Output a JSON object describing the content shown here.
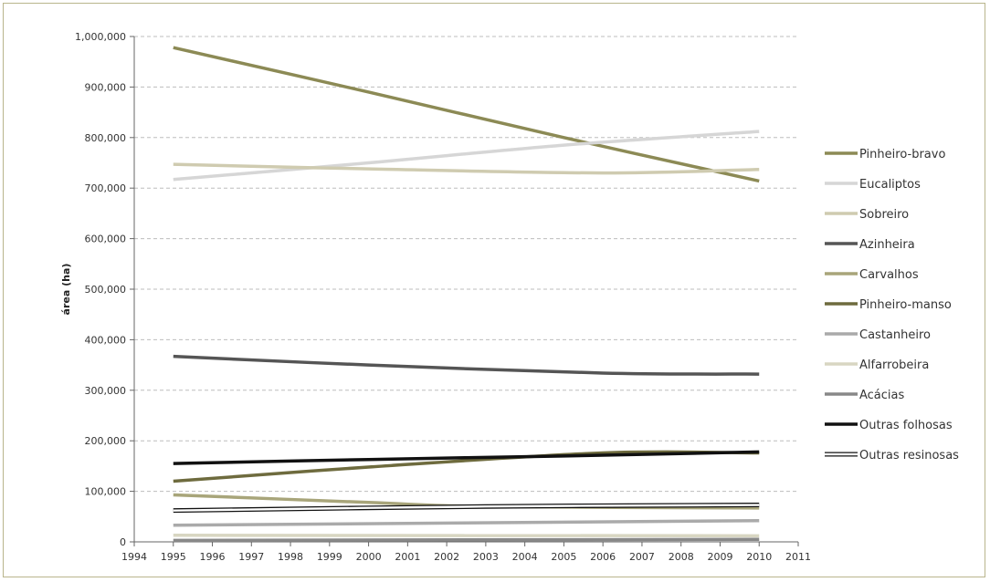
{
  "chart_data": {
    "type": "line",
    "title": "",
    "xlabel": "",
    "ylabel": "área (ha)",
    "x": [
      1995,
      2010
    ],
    "xlim": [
      1994,
      2011
    ],
    "xticks": [
      "1994",
      "1995",
      "1996",
      "1997",
      "1998",
      "1999",
      "2000",
      "2001",
      "2002",
      "2003",
      "2004",
      "2005",
      "2006",
      "2007",
      "2008",
      "2009",
      "2010",
      "2011"
    ],
    "ylim": [
      0,
      1000000
    ],
    "yticks": [
      "0",
      "100,000",
      "200,000",
      "300,000",
      "400,000",
      "500,000",
      "600,000",
      "700,000",
      "800,000",
      "900,000",
      "1,000,000"
    ],
    "grid": "horizontal dashed",
    "legend_position": "right",
    "series": [
      {
        "name": "Pinheiro-bravo",
        "color": "#8c8a55",
        "points": [
          [
            1995,
            978000
          ],
          [
            2000,
            890000
          ],
          [
            2005,
            800000
          ],
          [
            2010,
            714000
          ]
        ]
      },
      {
        "name": "Eucaliptos",
        "color": "#d6d6d6",
        "points": [
          [
            1995,
            717000
          ],
          [
            2000,
            750000
          ],
          [
            2005,
            785000
          ],
          [
            2010,
            812000
          ]
        ]
      },
      {
        "name": "Sobreiro",
        "color": "#cfcbb0",
        "points": [
          [
            1995,
            747000
          ],
          [
            2000,
            738000
          ],
          [
            2006,
            730000
          ],
          [
            2010,
            737000
          ]
        ]
      },
      {
        "name": "Azinheira",
        "color": "#555555",
        "points": [
          [
            1995,
            367000
          ],
          [
            2000,
            350000
          ],
          [
            2006,
            334000
          ],
          [
            2010,
            332000
          ]
        ]
      },
      {
        "name": "Carvalhos",
        "color": "#a8a57a",
        "points": [
          [
            1995,
            93000
          ],
          [
            2000,
            78000
          ],
          [
            2003,
            70000
          ],
          [
            2010,
            67000
          ]
        ]
      },
      {
        "name": "Pinheiro-manso",
        "color": "#6e6b3e",
        "points": [
          [
            1995,
            120000
          ],
          [
            2000,
            148000
          ],
          [
            2006,
            176000
          ],
          [
            2010,
            176000
          ]
        ]
      },
      {
        "name": "Castanheiro",
        "color": "#aaaaaa",
        "points": [
          [
            1995,
            33000
          ],
          [
            2010,
            42000
          ]
        ]
      },
      {
        "name": "Alfarrobeira",
        "color": "#d8d6c2",
        "points": [
          [
            1995,
            13000
          ],
          [
            2010,
            12000
          ]
        ]
      },
      {
        "name": "Acácias",
        "color": "#888888",
        "points": [
          [
            1995,
            3000
          ],
          [
            2010,
            5000
          ]
        ]
      },
      {
        "name": "Outras folhosas",
        "color": "#111111",
        "points": [
          [
            1995,
            155000
          ],
          [
            2000,
            163000
          ],
          [
            2005,
            170000
          ],
          [
            2010,
            178000
          ]
        ]
      },
      {
        "name": "Outras resinosas",
        "color": "#ffffff",
        "outline": "#111111",
        "points": [
          [
            1995,
            62000
          ],
          [
            2003,
            70000
          ],
          [
            2010,
            73000
          ]
        ]
      }
    ]
  }
}
